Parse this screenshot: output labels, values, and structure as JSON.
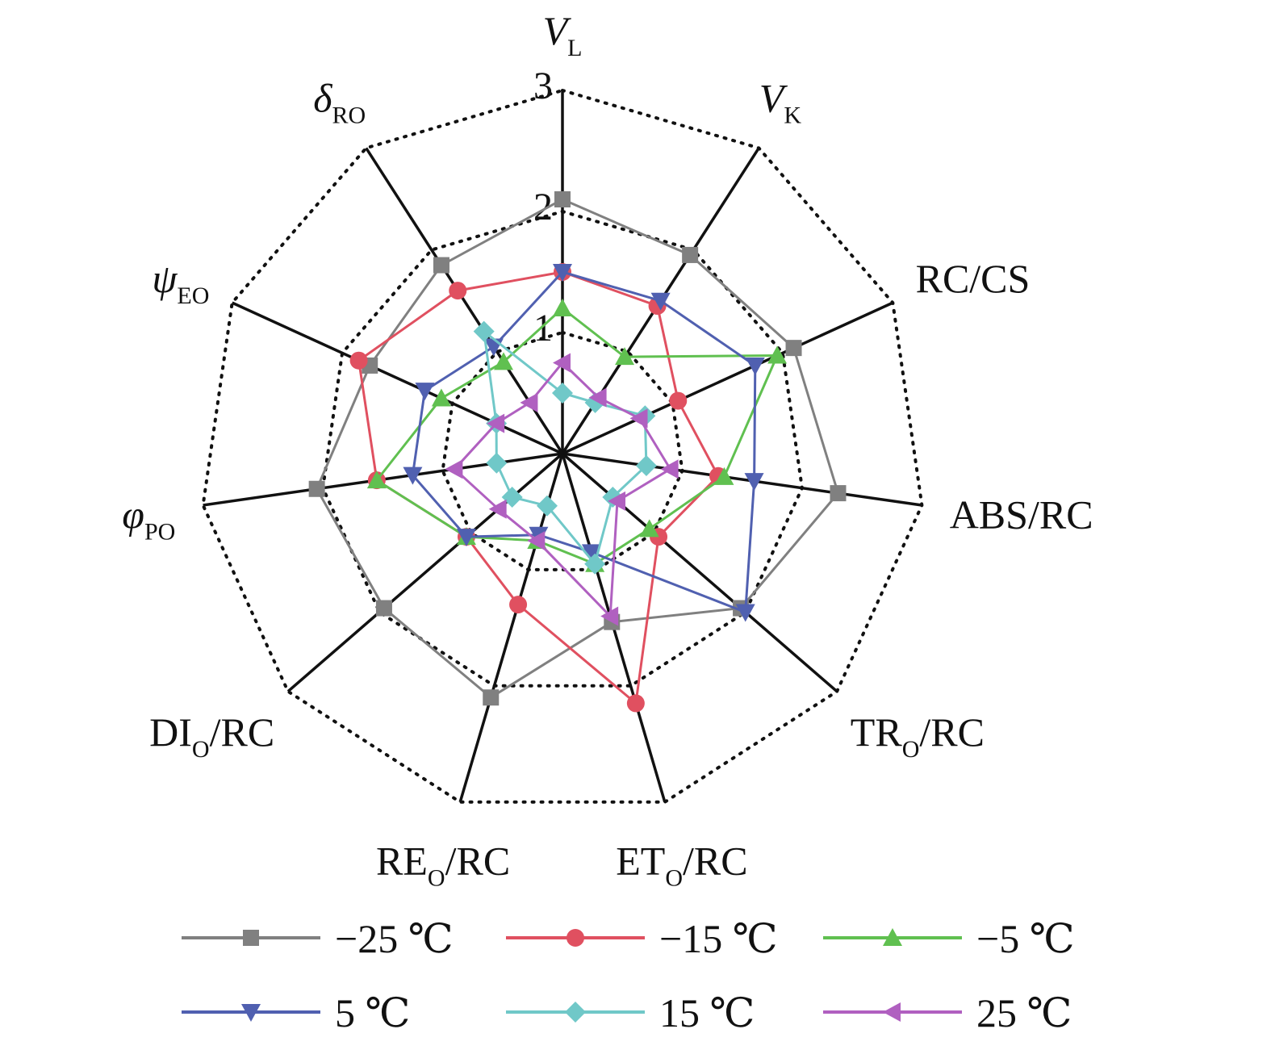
{
  "chart_data": {
    "type": "radar",
    "title": "",
    "rmax": 3,
    "ticks": [
      1,
      2,
      3
    ],
    "tick_labels": [
      "1",
      "2",
      "3"
    ],
    "grid": "dotted",
    "legend_position": "bottom",
    "axes": [
      {
        "label": "V",
        "sub": "L",
        "italic": true
      },
      {
        "label": "V",
        "sub": "K",
        "italic": true
      },
      {
        "label": "RC/CS",
        "sub": "",
        "italic": false
      },
      {
        "label": "ABS/RC",
        "sub": "",
        "italic": false
      },
      {
        "label": "TR",
        "sub": "O",
        "suffix": "/RC",
        "italic": false
      },
      {
        "label": "ET",
        "sub": "O",
        "suffix": "/RC",
        "italic": false
      },
      {
        "label": "RE",
        "sub": "O",
        "suffix": "/RC",
        "italic": false
      },
      {
        "label": "DI",
        "sub": "O",
        "suffix": "/RC",
        "italic": false
      },
      {
        "label": "φ",
        "sub": "PO",
        "italic": true
      },
      {
        "label": "ψ",
        "sub": "EO",
        "italic": true
      },
      {
        "label": "δ",
        "sub": "RO",
        "italic": true
      }
    ],
    "series": [
      {
        "name": "−25 ℃",
        "color": "#808080",
        "marker": "square",
        "values": [
          2.1,
          1.95,
          2.1,
          2.3,
          1.95,
          1.45,
          2.1,
          1.95,
          2.05,
          1.75,
          1.85
        ]
      },
      {
        "name": "−15 ℃",
        "color": "#e05060",
        "marker": "circle",
        "values": [
          1.5,
          1.45,
          1.05,
          1.3,
          1.05,
          2.15,
          1.3,
          1.05,
          1.55,
          1.85,
          1.6
        ]
      },
      {
        "name": "−5 ℃",
        "color": "#60c050",
        "marker": "triangle-up",
        "values": [
          1.2,
          0.95,
          1.95,
          1.35,
          0.95,
          0.95,
          0.75,
          1.05,
          1.55,
          1.1,
          0.9
        ]
      },
      {
        "name": "5 ℃",
        "color": "#5060b0",
        "marker": "triangle-down",
        "values": [
          1.5,
          1.5,
          1.75,
          1.6,
          2.0,
          0.85,
          0.7,
          1.05,
          1.25,
          1.25,
          1.05
        ]
      },
      {
        "name": "15 ℃",
        "color": "#70c8c8",
        "marker": "diamond",
        "values": [
          0.5,
          0.5,
          0.75,
          0.7,
          0.55,
          0.95,
          0.45,
          0.55,
          0.55,
          0.6,
          1.2
        ]
      },
      {
        "name": "25 ℃",
        "color": "#b060c0",
        "marker": "triangle-left",
        "values": [
          0.75,
          0.55,
          0.7,
          0.9,
          0.6,
          1.4,
          0.75,
          0.7,
          0.9,
          0.6,
          0.5
        ]
      }
    ]
  }
}
